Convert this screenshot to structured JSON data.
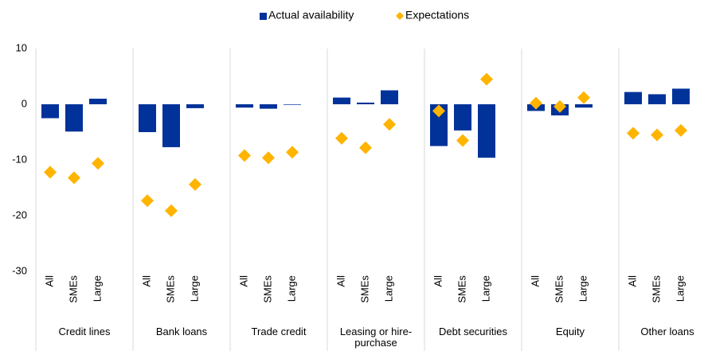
{
  "chart_data": {
    "type": "bar",
    "categories": [
      "All",
      "SMEs",
      "Large",
      "All",
      "SMEs",
      "Large",
      "All",
      "SMEs",
      "Large",
      "All",
      "SMEs",
      "Large",
      "All",
      "SMEs",
      "Large",
      "All",
      "SMEs",
      "Large",
      "All",
      "SMEs",
      "Large"
    ],
    "groups": [
      "Credit lines",
      "Bank loans",
      "Trade credit",
      "Leasing or hire-purchase",
      "Debt securities",
      "Equity",
      "Other loans"
    ],
    "series": [
      {
        "name": "Actual availability",
        "type": "bar",
        "color": "#003299",
        "values": [
          -2.5,
          -4.9,
          1.0,
          -5.0,
          -7.7,
          -0.7,
          -0.6,
          -0.8,
          -0.1,
          1.2,
          0.3,
          2.5,
          -7.5,
          -4.7,
          -9.6,
          -1.2,
          -2.0,
          -0.6,
          2.2,
          1.8,
          2.8
        ]
      },
      {
        "name": "Expectations",
        "type": "scatter",
        "marker": "diamond",
        "color": "#FFB400",
        "values": [
          -12.2,
          -13.2,
          -10.6,
          -17.3,
          -19.1,
          -14.4,
          -9.2,
          -9.6,
          -8.6,
          -6.1,
          -7.8,
          -3.6,
          -1.2,
          -6.5,
          4.5,
          0.2,
          -0.4,
          1.2,
          -5.2,
          -5.5,
          -4.7
        ]
      }
    ],
    "ylim": [
      -30,
      10
    ],
    "yticks": [
      -30,
      -20,
      -10,
      0,
      10
    ],
    "legend": "top"
  }
}
